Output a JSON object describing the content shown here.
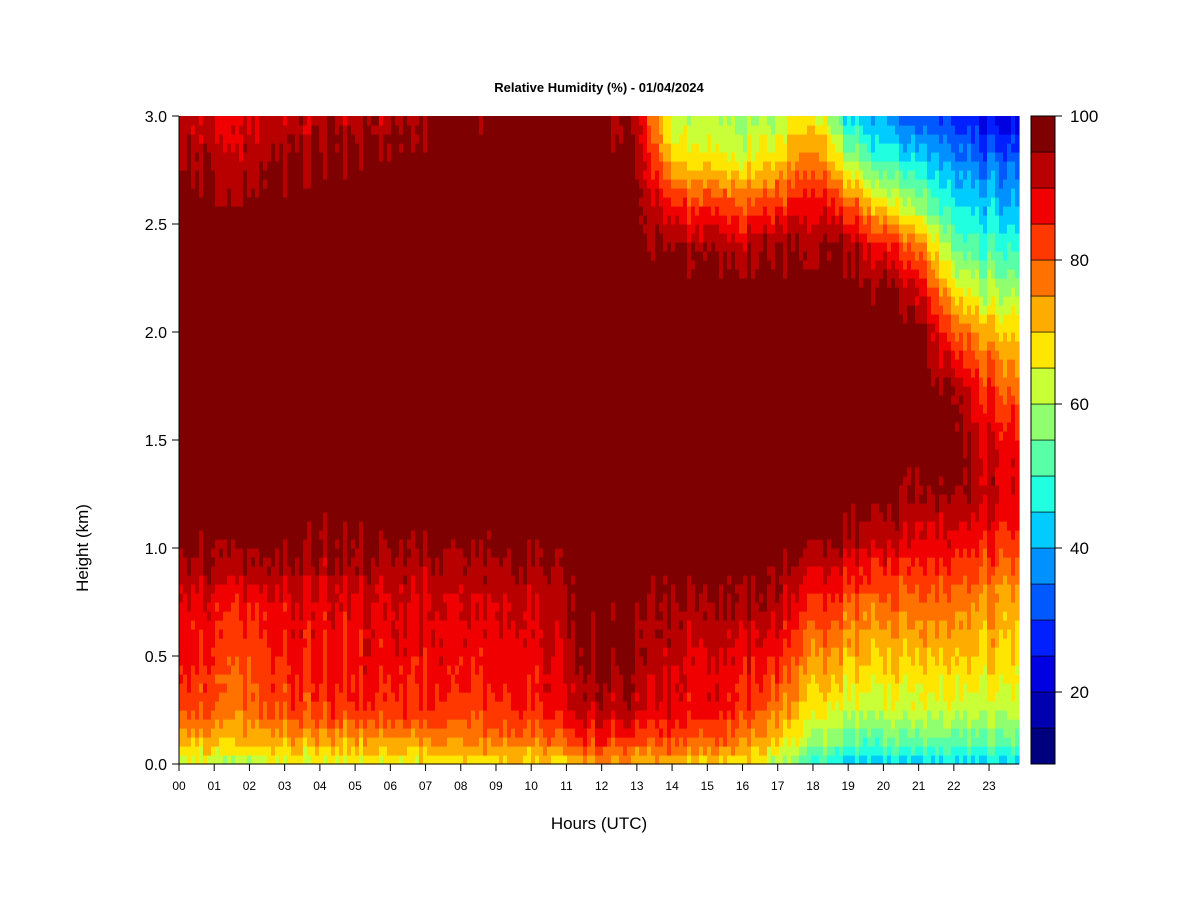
{
  "chart_data": {
    "type": "heatmap",
    "title": "Relative Humidity (%) - 01/04/2024",
    "xlabel": "Hours (UTC)",
    "ylabel": "Height (km)",
    "x_tick_labels": [
      "00",
      "01",
      "02",
      "03",
      "04",
      "05",
      "06",
      "07",
      "08",
      "09",
      "10",
      "11",
      "12",
      "13",
      "14",
      "15",
      "16",
      "17",
      "18",
      "19",
      "20",
      "21",
      "22",
      "23"
    ],
    "x_tick_values": [
      0,
      1,
      2,
      3,
      4,
      5,
      6,
      7,
      8,
      9,
      10,
      11,
      12,
      13,
      14,
      15,
      16,
      17,
      18,
      19,
      20,
      21,
      22,
      23
    ],
    "xlim": [
      0,
      23.85
    ],
    "y_tick_labels": [
      "0.0",
      "0.5",
      "1.0",
      "1.5",
      "2.0",
      "2.5",
      "3.0"
    ],
    "y_tick_values": [
      0,
      0.5,
      1.0,
      1.5,
      2.0,
      2.5,
      3.0
    ],
    "ylim": [
      0,
      3.0
    ],
    "colorbar": {
      "tick_labels": [
        "20",
        "40",
        "60",
        "80",
        "100"
      ],
      "tick_values": [
        20,
        40,
        60,
        80,
        100
      ],
      "range": [
        10,
        100
      ],
      "levels": [
        {
          "from": 10,
          "to": 15,
          "color": "#00007f"
        },
        {
          "from": 15,
          "to": 20,
          "color": "#0000b0"
        },
        {
          "from": 20,
          "to": 25,
          "color": "#0000e0"
        },
        {
          "from": 25,
          "to": 30,
          "color": "#0020ff"
        },
        {
          "from": 30,
          "to": 35,
          "color": "#0058ff"
        },
        {
          "from": 35,
          "to": 40,
          "color": "#0090ff"
        },
        {
          "from": 40,
          "to": 45,
          "color": "#00ccff"
        },
        {
          "from": 45,
          "to": 50,
          "color": "#20ffdf"
        },
        {
          "from": 50,
          "to": 55,
          "color": "#58ffa7"
        },
        {
          "from": 55,
          "to": 60,
          "color": "#90ff6f"
        },
        {
          "from": 60,
          "to": 65,
          "color": "#c8ff37"
        },
        {
          "from": 65,
          "to": 70,
          "color": "#ffe600"
        },
        {
          "from": 70,
          "to": 75,
          "color": "#ffac00"
        },
        {
          "from": 75,
          "to": 80,
          "color": "#ff7200"
        },
        {
          "from": 80,
          "to": 85,
          "color": "#ff3800"
        },
        {
          "from": 85,
          "to": 90,
          "color": "#f00000"
        },
        {
          "from": 90,
          "to": 95,
          "color": "#b80000"
        },
        {
          "from": 95,
          "to": 100,
          "color": "#7f0000"
        }
      ]
    },
    "profile_heights_km": [
      0.02,
      0.1,
      0.25,
      0.5,
      0.75,
      0.9,
      1.05,
      1.25,
      1.5,
      1.75,
      2.0,
      2.2,
      2.4,
      2.6,
      2.8,
      3.0
    ],
    "profiles": [
      {
        "hour": 0,
        "rh": [
          62,
          70,
          80,
          86,
          88,
          93,
          96,
          98,
          98,
          98,
          98,
          98,
          98,
          97,
          93,
          89
        ]
      },
      {
        "hour": 2,
        "rh": [
          64,
          72,
          80,
          83,
          88,
          95,
          98,
          98,
          98,
          98,
          98,
          98,
          98,
          97,
          94,
          91
        ]
      },
      {
        "hour": 4,
        "rh": [
          64,
          72,
          82,
          86,
          88,
          93,
          96,
          98,
          98,
          98,
          98,
          98,
          98,
          98,
          96,
          92
        ]
      },
      {
        "hour": 6,
        "rh": [
          67,
          74,
          84,
          88,
          90,
          93,
          97,
          98,
          98,
          98,
          98,
          98,
          98,
          98,
          97,
          94
        ]
      },
      {
        "hour": 8,
        "rh": [
          67,
          74,
          82,
          86,
          89,
          92,
          96,
          98,
          98,
          98,
          98,
          98,
          98,
          98,
          98,
          96
        ]
      },
      {
        "hour": 10,
        "rh": [
          68,
          76,
          84,
          87,
          90,
          94,
          97,
          98,
          98,
          98,
          98,
          98,
          98,
          98,
          98,
          97
        ]
      },
      {
        "hour": 11.5,
        "rh": [
          74,
          82,
          92,
          96,
          97,
          98,
          98,
          98,
          98,
          98,
          98,
          98,
          98,
          98,
          98,
          98
        ]
      },
      {
        "hour": 13,
        "rh": [
          74,
          82,
          92,
          96,
          97,
          98,
          98,
          98,
          98,
          98,
          98,
          98,
          98,
          98,
          96,
          93
        ]
      },
      {
        "hour": 14,
        "rh": [
          72,
          80,
          88,
          90,
          94,
          97,
          98,
          98,
          98,
          98,
          98,
          98,
          95,
          84,
          68,
          62
        ]
      },
      {
        "hour": 16,
        "rh": [
          68,
          76,
          84,
          88,
          95,
          97,
          98,
          98,
          98,
          98,
          98,
          98,
          92,
          80,
          64,
          58
        ]
      },
      {
        "hour": 17,
        "rh": [
          60,
          68,
          76,
          85,
          92,
          96,
          98,
          98,
          98,
          98,
          98,
          98,
          94,
          82,
          68,
          60
        ]
      },
      {
        "hour": 18,
        "rh": [
          52,
          60,
          68,
          76,
          86,
          92,
          97,
          98,
          98,
          98,
          98,
          98,
          96,
          90,
          80,
          70
        ]
      },
      {
        "hour": 19,
        "rh": [
          44,
          52,
          62,
          72,
          80,
          88,
          95,
          98,
          98,
          98,
          98,
          98,
          94,
          80,
          60,
          45
        ]
      },
      {
        "hour": 20,
        "rh": [
          44,
          52,
          62,
          70,
          78,
          85,
          92,
          97,
          98,
          98,
          98,
          96,
          86,
          66,
          48,
          38
        ]
      },
      {
        "hour": 21,
        "rh": [
          46,
          54,
          64,
          72,
          80,
          85,
          90,
          96,
          98,
          98,
          98,
          92,
          78,
          58,
          45,
          32
        ]
      },
      {
        "hour": 22,
        "rh": [
          44,
          52,
          62,
          70,
          78,
          82,
          88,
          96,
          98,
          94,
          80,
          66,
          54,
          44,
          36,
          28
        ]
      },
      {
        "hour": 23,
        "rh": [
          46,
          54,
          62,
          70,
          74,
          80,
          86,
          92,
          90,
          82,
          72,
          60,
          50,
          42,
          34,
          24
        ]
      },
      {
        "hour": 23.85,
        "rh": [
          46,
          56,
          64,
          70,
          74,
          80,
          86,
          90,
          88,
          80,
          70,
          60,
          50,
          42,
          34,
          24
        ]
      }
    ]
  }
}
